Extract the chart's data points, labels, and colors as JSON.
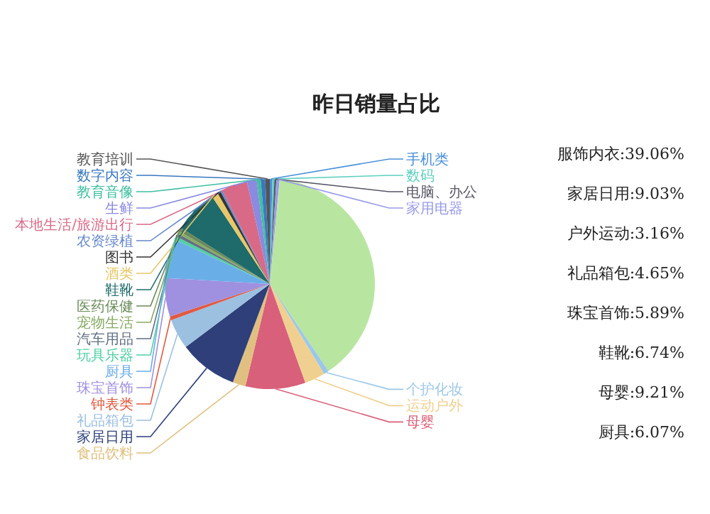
{
  "chart_data": {
    "type": "pie",
    "title": "昨日销量占比",
    "categories": [
      "手机类",
      "数码",
      "电脑、办公",
      "家用电器",
      null,
      "个护化妆",
      "运动户外",
      "母婴",
      "食品饮料",
      "家居日用",
      "礼品箱包",
      "钟表类",
      "珠宝首饰",
      "厨具",
      "玩具乐器",
      "汽车用品",
      "宠物生活",
      "医药保健",
      "鞋靴",
      "酒类",
      "图书",
      "农资绿植",
      "本地生活/旅游出行",
      "生鲜",
      "教育音像",
      "数字内容",
      "教育培训"
    ],
    "values": [
      0.4,
      0.3,
      0.3,
      0.5,
      39.06,
      0.8,
      3.16,
      9.21,
      2.0,
      9.03,
      4.65,
      0.6,
      5.89,
      6.07,
      0.5,
      0.5,
      0.4,
      0.6,
      6.74,
      1.0,
      0.5,
      0.3,
      4.0,
      1.5,
      0.6,
      0.7,
      0.69
    ],
    "colors": [
      "#4a90d9",
      "#5fd0c0",
      "#555566",
      "#9a9ae8",
      "#b8e6a0",
      "#9cc8e8",
      "#f0d090",
      "#d9607a",
      "#e0c080",
      "#2e3f7a",
      "#9cc0e0",
      "#e05a40",
      "#a090e0",
      "#6aaee8",
      "#50d0a0",
      "#607080",
      "#88aa66",
      "#6a8a5a",
      "#1f6a6a",
      "#e6c86a",
      "#333333",
      "#6688cc",
      "#d86a88",
      "#8a8ae0",
      "#40c0a0",
      "#3a78c0",
      "#555555"
    ],
    "annotations": [
      "服饰内衣:39.06%",
      "家居日用:9.03%",
      "户外运动:3.16%",
      "礼品箱包:4.65%",
      "珠宝首饰:5.89%",
      "鞋靴:6.74%",
      "母婴:9.21%",
      "厨具:6.07%"
    ]
  }
}
